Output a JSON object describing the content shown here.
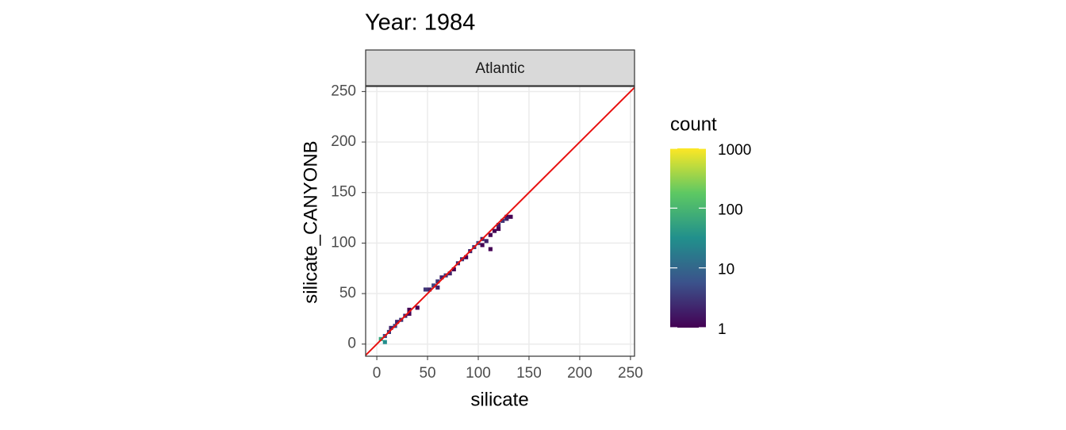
{
  "chart_data": {
    "type": "bin2d",
    "title": "Year: 1984",
    "facet": "Atlantic",
    "x_label": "silicate",
    "y_label": "silicate_CANYONB",
    "xlim": [
      -11,
      254
    ],
    "ylim": [
      -12,
      255
    ],
    "xticks": [
      0,
      50,
      100,
      150,
      200,
      250
    ],
    "yticks": [
      0,
      50,
      100,
      150,
      200,
      250
    ],
    "grid": true,
    "binwidth": 4,
    "reference_line": {
      "slope": 1,
      "intercept": 0,
      "color": "#e8100f"
    },
    "tiles": {
      "x": [
        4,
        8,
        8,
        12,
        14,
        18,
        20,
        24,
        28,
        32,
        32,
        40,
        48,
        52,
        56,
        60,
        60,
        64,
        68,
        72,
        76,
        80,
        84,
        88,
        92,
        96,
        100,
        104,
        104,
        108,
        112,
        112,
        116,
        120,
        124,
        128,
        120,
        128,
        132
      ],
      "y": [
        5,
        2,
        8,
        12,
        16,
        18,
        22,
        24,
        28,
        30,
        34,
        36,
        54,
        54,
        58,
        56,
        62,
        66,
        68,
        70,
        74,
        80,
        84,
        86,
        92,
        96,
        100,
        104,
        98,
        102,
        108,
        94,
        112,
        118,
        122,
        126,
        114,
        124,
        126
      ],
      "count": [
        60,
        30,
        5,
        3,
        2,
        4,
        2,
        3,
        2,
        1,
        1,
        1,
        3,
        2,
        4,
        2,
        3,
        2,
        3,
        2,
        1,
        2,
        3,
        1,
        2,
        3,
        4,
        2,
        1,
        2,
        1,
        1,
        1,
        2,
        3,
        1,
        1,
        2,
        1
      ]
    },
    "colormap": [
      "#440154",
      "#3b528b",
      "#21908c",
      "#5dc863",
      "#fde725"
    ],
    "legend": {
      "title": "count",
      "limits": [
        1,
        1000
      ],
      "ticks": [
        1,
        10,
        100,
        1000
      ],
      "log_scale": true
    }
  }
}
